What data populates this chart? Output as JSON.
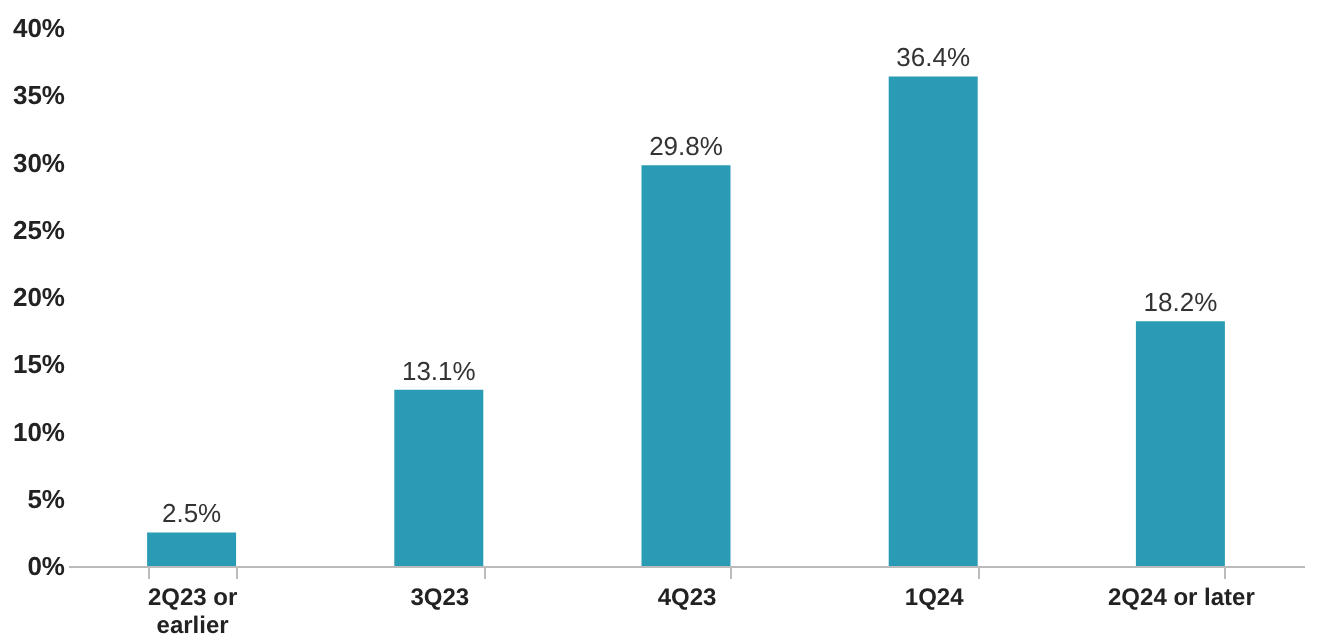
{
  "chart_data": {
    "type": "bar",
    "categories": [
      "2Q23 or earlier",
      "3Q23",
      "4Q23",
      "1Q24",
      "2Q24 or later"
    ],
    "values": [
      2.5,
      13.1,
      29.8,
      36.4,
      18.2
    ],
    "value_labels": [
      "2.5%",
      "13.1%",
      "29.8%",
      "36.4%",
      "18.2%"
    ],
    "color": "#2a9bb5",
    "ylim": [
      0,
      40
    ],
    "yticks": [
      {
        "value": 0,
        "label": "0%"
      },
      {
        "value": 5,
        "label": "5%"
      },
      {
        "value": 10,
        "label": "10%"
      },
      {
        "value": 15,
        "label": "15%"
      },
      {
        "value": 20,
        "label": "20%"
      },
      {
        "value": 25,
        "label": "25%"
      },
      {
        "value": 30,
        "label": "30%"
      },
      {
        "value": 35,
        "label": "35%"
      },
      {
        "value": 40,
        "label": "40%"
      }
    ],
    "grid": false
  }
}
